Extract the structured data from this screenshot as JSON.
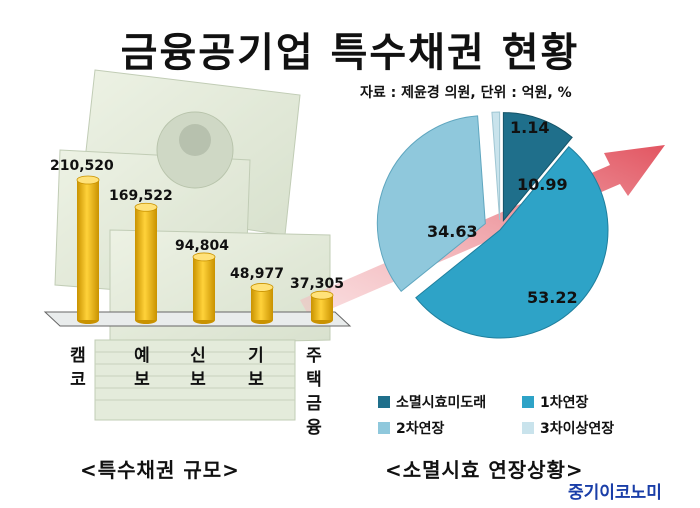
{
  "title": "금융공기업 특수채권 현황",
  "source": "자료 : 제윤경 의원, 단위 : 억원, %",
  "left_caption": "<특수채권 규모>",
  "right_caption": "<소멸시효 연장상황>",
  "brand": "중기이코노미",
  "colors": {
    "bar": "#f2b705",
    "bar_dark": "#c99200",
    "pie": [
      "#1f6f8b",
      "#2ea3c7",
      "#8fc8dc",
      "#c9e3ec"
    ],
    "arrow": "#e8727a"
  },
  "chart_data": [
    {
      "type": "bar",
      "categories": [
        "캠코",
        "예보",
        "신보",
        "기보",
        "주택금융"
      ],
      "values": [
        210520,
        169522,
        94804,
        48977,
        37305
      ],
      "value_labels": [
        "210,520",
        "169,522",
        "94,804",
        "48,977",
        "37,305"
      ],
      "caption": "<특수채권 규모>"
    },
    {
      "type": "pie",
      "labels": [
        "소멸시효미도래",
        "1차연장",
        "2차연장",
        "3차이상연장"
      ],
      "values": [
        10.99,
        53.22,
        34.63,
        1.14
      ],
      "value_labels": [
        "10.99",
        "53.22",
        "34.63",
        "1.14"
      ],
      "caption": "<소멸시효 연장상황>"
    }
  ]
}
